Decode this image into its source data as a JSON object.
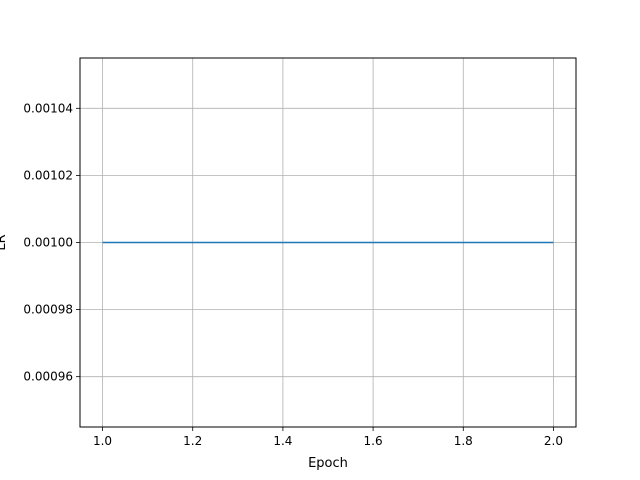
{
  "chart_data": {
    "type": "line",
    "title": "",
    "xlabel": "Epoch",
    "ylabel": "LR",
    "xlim": [
      0.95,
      2.05
    ],
    "ylim": [
      0.000945,
      0.001055
    ],
    "grid": true,
    "x_ticks": [
      1.0,
      1.2,
      1.4,
      1.6,
      1.8,
      2.0
    ],
    "x_tick_labels": [
      "1.0",
      "1.2",
      "1.4",
      "1.6",
      "1.8",
      "2.0"
    ],
    "y_ticks": [
      0.00096,
      0.00098,
      0.001,
      0.00102,
      0.00104
    ],
    "y_tick_labels": [
      "0.00096",
      "0.00098",
      "0.00100",
      "0.00102",
      "0.00104"
    ],
    "series": [
      {
        "x": [
          1,
          2
        ],
        "y": [
          0.001,
          0.001
        ],
        "color": "#1f77b4"
      }
    ]
  }
}
